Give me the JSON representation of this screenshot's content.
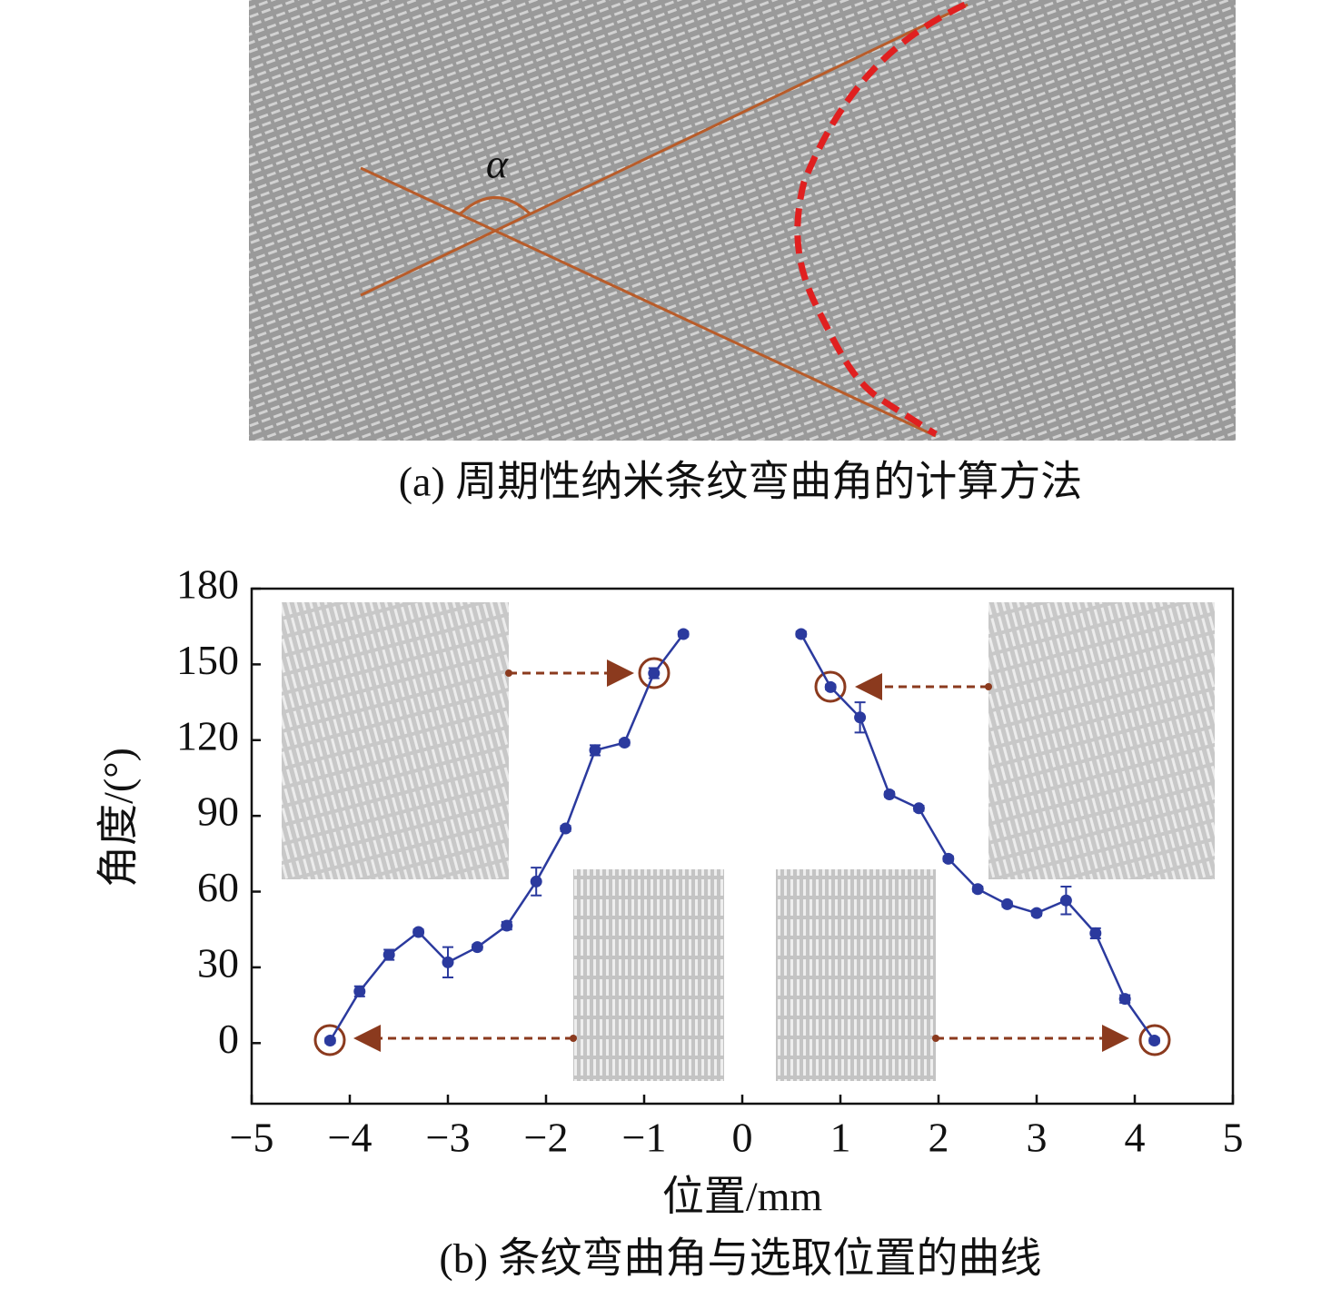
{
  "panel_a": {
    "angle_label": "α",
    "caption": "(a) 周期性纳米条纹弯曲角的计算方法"
  },
  "chart_data": {
    "type": "line",
    "caption": "(b) 条纹弯曲角与选取位置的曲线",
    "xlabel": "位置/mm",
    "ylabel": "角度/(°)",
    "xlim": [
      -5,
      5
    ],
    "ylim": [
      -24,
      180
    ],
    "xticks": [
      {
        "value": -5,
        "label": "−5"
      },
      {
        "value": -4,
        "label": "−4"
      },
      {
        "value": -3,
        "label": "−3"
      },
      {
        "value": -2,
        "label": "−2"
      },
      {
        "value": -1,
        "label": "−1"
      },
      0,
      1,
      2,
      3,
      4,
      5
    ],
    "yticks": [
      0,
      30,
      60,
      90,
      120,
      150,
      180
    ],
    "color": "#2b3a9e",
    "x": [
      -4.2,
      -3.9,
      -3.6,
      -3.3,
      -3.0,
      -2.7,
      -2.4,
      -2.1,
      -1.8,
      -1.5,
      -1.2,
      -0.9,
      -0.6,
      null,
      0.6,
      0.9,
      1.2,
      1.5,
      1.8,
      2.1,
      2.4,
      2.7,
      3.0,
      3.3,
      3.6,
      3.9,
      4.2
    ],
    "values": [
      1,
      20.5,
      35,
      44,
      32,
      38,
      46.5,
      64,
      85,
      116,
      119,
      146.5,
      162,
      null,
      162,
      141,
      129,
      98.5,
      93,
      73,
      61,
      55,
      51.5,
      56.5,
      43.5,
      17.5,
      1
    ],
    "errors": [
      1,
      2,
      2,
      1,
      6,
      1,
      1.5,
      5.5,
      1,
      2,
      1,
      2,
      1,
      null,
      1,
      1,
      6,
      1,
      1,
      1,
      1,
      1,
      1,
      5.5,
      2,
      1.5,
      1
    ]
  }
}
